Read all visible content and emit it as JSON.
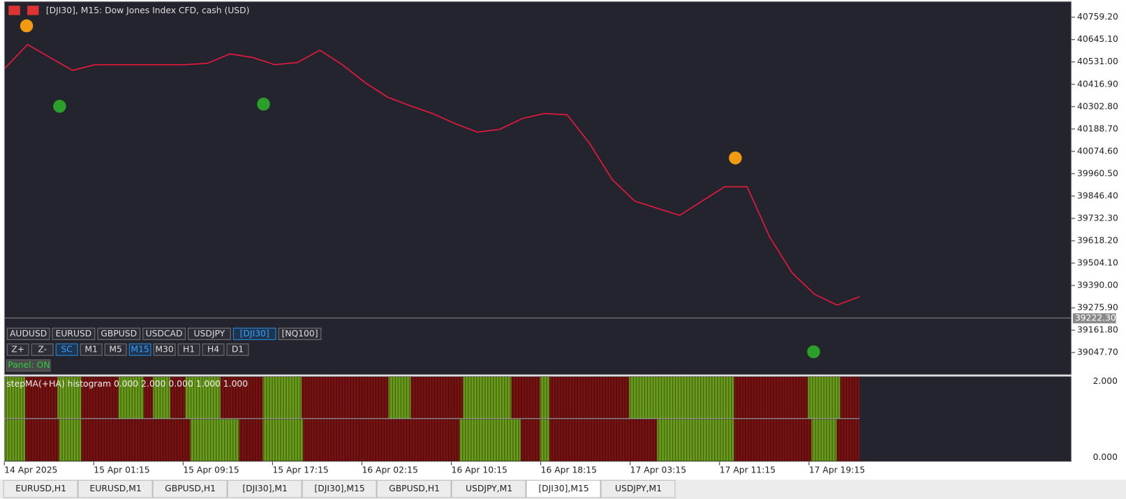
{
  "window": {
    "title": "[DJI30], M15:  Dow Jones Index CFD, cash (USD)",
    "price_axis": {
      "ticks": [
        {
          "value": 40759.2,
          "label": "40759.20"
        },
        {
          "value": 40645.1,
          "label": "40645.10"
        },
        {
          "value": 40531,
          "label": "40531.00"
        },
        {
          "value": 40416.9,
          "label": "40416.90"
        },
        {
          "value": 40302.8,
          "label": "40302.80"
        },
        {
          "value": 40188.7,
          "label": "40188.70"
        },
        {
          "value": 40074.6,
          "label": "40074.60"
        },
        {
          "value": 39960.5,
          "label": "39960.50"
        },
        {
          "value": 39846.4,
          "label": "39846.40"
        },
        {
          "value": 39732.3,
          "label": "39732.30"
        },
        {
          "value": 39618.2,
          "label": "39618.20"
        },
        {
          "value": 39504.1,
          "label": "39504.10"
        },
        {
          "value": 39390,
          "label": "39390.00"
        },
        {
          "value": 39275.9,
          "label": "39275.90"
        },
        {
          "value": 39161.8,
          "label": "39161.80"
        },
        {
          "value": 39047.7,
          "label": "39047.70"
        }
      ],
      "current": {
        "value": 39222.3,
        "label": "39222.30"
      }
    },
    "time_axis": [
      "14 Apr 2025",
      "15 Apr 01:15",
      "15 Apr 09:15",
      "15 Apr 17:15",
      "16 Apr 02:15",
      "16 Apr 10:15",
      "16 Apr 18:15",
      "17 Apr 03:15",
      "17 Apr 11:15",
      "17 Apr 19:15"
    ],
    "ma_line": [
      40499,
      40620,
      40554,
      40488,
      40517,
      40517,
      40517,
      40517,
      40517,
      40524,
      40572,
      40554,
      40517,
      40528,
      40591,
      40517,
      40426,
      40352,
      40308,
      40268,
      40217,
      40173,
      40187,
      40242,
      40268,
      40261,
      40114,
      39931,
      39821,
      39784,
      39748,
      39821,
      39894,
      39894,
      39638,
      39454,
      39345,
      39290,
      39333
    ],
    "symbol_buttons": {
      "labels": [
        "AUDUSD",
        "EURUSD",
        "GBPUSD",
        "USDCAD",
        "USDJPY",
        "[DJI30]",
        "[NQ100]"
      ],
      "active": [
        5
      ]
    },
    "timeframe_buttons": {
      "labels": [
        "Z+",
        "Z-",
        "SC",
        "M1",
        "M5",
        "M15",
        "M30",
        "H1",
        "H4",
        "D1"
      ],
      "active": [
        2,
        5
      ]
    },
    "panel_button": "Panel: ON",
    "indicator": {
      "label": "stepMA(+HA) histogram 0.000 2.000 0.000 1.000 1.000",
      "axis": [
        "2.000",
        "0.000"
      ]
    },
    "tabs": {
      "labels": [
        "EURUSD,H1",
        "EURUSD,M1",
        "GBPUSD,H1",
        "[DJI30],M1",
        "[DJI30],M15",
        "GBPUSD,H1",
        "USDJPY,M1",
        "[DJI30],M15",
        "USDJPY,M1"
      ],
      "active": [
        7
      ]
    }
  }
}
